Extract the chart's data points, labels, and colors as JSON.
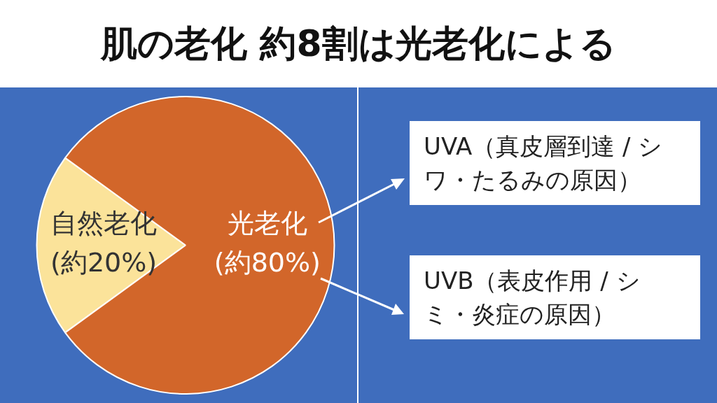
{
  "chart_data": {
    "type": "pie",
    "title": "肌の老化 約8割は光老化による",
    "categories": [
      "自然老化",
      "光老化"
    ],
    "values": [
      20,
      80
    ],
    "colors": [
      "#fbe39a",
      "#d2662a"
    ],
    "value_labels": [
      "(約20%)",
      "(約80%)"
    ],
    "annotations": [
      "UVA（真皮層到達 / シワ・たるみの原因）",
      "UVB（表皮作用 / シミ・炎症の原因）"
    ]
  }
}
